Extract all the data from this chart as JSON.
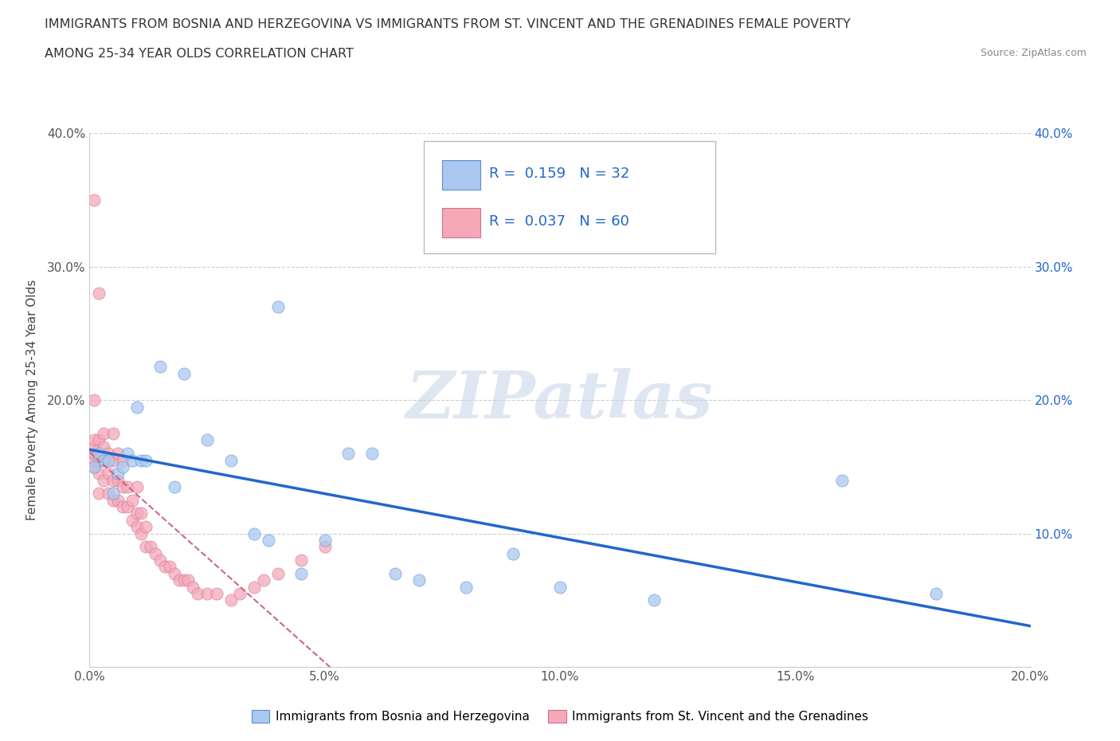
{
  "title_line1": "IMMIGRANTS FROM BOSNIA AND HERZEGOVINA VS IMMIGRANTS FROM ST. VINCENT AND THE GRENADINES FEMALE POVERTY",
  "title_line2": "AMONG 25-34 YEAR OLDS CORRELATION CHART",
  "source": "Source: ZipAtlas.com",
  "ylabel": "Female Poverty Among 25-34 Year Olds",
  "xlim": [
    0.0,
    0.2
  ],
  "ylim": [
    0.0,
    0.4
  ],
  "xticks": [
    0.0,
    0.05,
    0.1,
    0.15,
    0.2
  ],
  "xtick_labels": [
    "0.0%",
    "5.0%",
    "10.0%",
    "15.0%",
    "20.0%"
  ],
  "yticks": [
    0.0,
    0.1,
    0.2,
    0.3,
    0.4
  ],
  "ytick_labels_left": [
    "",
    "",
    "20.0%",
    "30.0%",
    "40.0%"
  ],
  "ytick_labels_right": [
    "",
    "10.0%",
    "20.0%",
    "30.0%",
    "40.0%"
  ],
  "bosnia_R": 0.159,
  "bosnia_N": 32,
  "stvincent_R": 0.037,
  "stvincent_N": 60,
  "bosnia_color": "#aac8f0",
  "stvincent_color": "#f4a8b8",
  "bosnia_edge_color": "#5590d0",
  "stvincent_edge_color": "#d07090",
  "bosnia_line_color": "#2266cc",
  "stvincent_line_color": "#cc6688",
  "watermark": "ZIPatlas",
  "legend_label_bosnia": "Immigrants from Bosnia and Herzegovina",
  "legend_label_stvincent": "Immigrants from St. Vincent and the Grenadines",
  "bosnia_x": [
    0.001,
    0.002,
    0.003,
    0.004,
    0.005,
    0.006,
    0.007,
    0.008,
    0.009,
    0.01,
    0.011,
    0.012,
    0.015,
    0.018,
    0.02,
    0.025,
    0.03,
    0.035,
    0.038,
    0.04,
    0.045,
    0.05,
    0.055,
    0.06,
    0.065,
    0.07,
    0.08,
    0.09,
    0.1,
    0.12,
    0.16,
    0.18
  ],
  "bosnia_y": [
    0.15,
    0.16,
    0.155,
    0.155,
    0.13,
    0.145,
    0.15,
    0.16,
    0.155,
    0.195,
    0.155,
    0.155,
    0.225,
    0.135,
    0.22,
    0.17,
    0.155,
    0.1,
    0.095,
    0.27,
    0.07,
    0.095,
    0.16,
    0.16,
    0.07,
    0.065,
    0.06,
    0.085,
    0.06,
    0.05,
    0.14,
    0.055
  ],
  "stvincent_x": [
    0.001,
    0.001,
    0.001,
    0.001,
    0.001,
    0.001,
    0.001,
    0.002,
    0.002,
    0.002,
    0.002,
    0.002,
    0.003,
    0.003,
    0.003,
    0.003,
    0.004,
    0.004,
    0.004,
    0.005,
    0.005,
    0.005,
    0.005,
    0.006,
    0.006,
    0.006,
    0.007,
    0.007,
    0.007,
    0.008,
    0.008,
    0.009,
    0.009,
    0.01,
    0.01,
    0.01,
    0.011,
    0.011,
    0.012,
    0.012,
    0.013,
    0.014,
    0.015,
    0.016,
    0.017,
    0.018,
    0.019,
    0.02,
    0.021,
    0.022,
    0.023,
    0.025,
    0.027,
    0.03,
    0.032,
    0.035,
    0.037,
    0.04,
    0.045,
    0.05
  ],
  "stvincent_y": [
    0.15,
    0.155,
    0.16,
    0.165,
    0.17,
    0.2,
    0.35,
    0.13,
    0.145,
    0.155,
    0.17,
    0.28,
    0.14,
    0.155,
    0.165,
    0.175,
    0.13,
    0.145,
    0.16,
    0.125,
    0.14,
    0.155,
    0.175,
    0.125,
    0.14,
    0.16,
    0.12,
    0.135,
    0.155,
    0.12,
    0.135,
    0.11,
    0.125,
    0.105,
    0.115,
    0.135,
    0.1,
    0.115,
    0.09,
    0.105,
    0.09,
    0.085,
    0.08,
    0.075,
    0.075,
    0.07,
    0.065,
    0.065,
    0.065,
    0.06,
    0.055,
    0.055,
    0.055,
    0.05,
    0.055,
    0.06,
    0.065,
    0.07,
    0.08,
    0.09
  ]
}
